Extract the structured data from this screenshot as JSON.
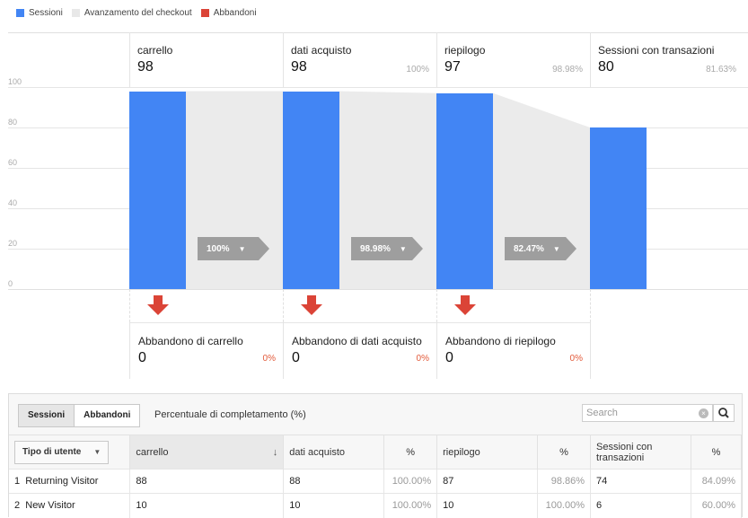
{
  "legend": [
    {
      "label": "Sessioni",
      "color": "#4285f4"
    },
    {
      "label": "Avanzamento del checkout",
      "color": "#e8e8e8"
    },
    {
      "label": "Abbandoni",
      "color": "#db4437"
    }
  ],
  "chart_data": {
    "type": "bar",
    "categories": [
      "carrello",
      "dati acquisto",
      "riepilogo",
      "Sessioni con transazioni"
    ],
    "series": [
      {
        "name": "Sessioni",
        "values": [
          98,
          98,
          97,
          80
        ]
      }
    ],
    "ylim": [
      0,
      100
    ],
    "yticks": [
      "100",
      "80",
      "60",
      "40",
      "20",
      "0"
    ],
    "stage_percentages": [
      "",
      "100%",
      "98.98%",
      "81.63%"
    ],
    "flow_labels": [
      "100%",
      "98.98%",
      "82.47%"
    ],
    "grid": true
  },
  "stages": [
    {
      "name": "carrello",
      "value": "98",
      "pct": ""
    },
    {
      "name": "dati acquisto",
      "value": "98",
      "pct": "100%"
    },
    {
      "name": "riepilogo",
      "value": "97",
      "pct": "98.98%"
    },
    {
      "name": "Sessioni con transazioni",
      "value": "80",
      "pct": "81.63%"
    }
  ],
  "abandonment": [
    {
      "title": "Abbandono di carrello",
      "value": "0",
      "pct": "0%"
    },
    {
      "title": "Abbandono di dati acquisto",
      "value": "0",
      "pct": "0%"
    },
    {
      "title": "Abbandono di riepilogo",
      "value": "0",
      "pct": "0%"
    }
  ],
  "table_controls": {
    "seg_sessions": "Sessioni",
    "seg_abandon": "Abbandoni",
    "pct_label": "Percentuale di completamento (%)",
    "search_placeholder": "Search"
  },
  "table": {
    "dimension": "Tipo di utente",
    "headers": [
      "carrello",
      "dati acquisto",
      "%",
      "riepilogo",
      "%",
      "Sessioni con transazioni",
      "%"
    ],
    "rows": [
      {
        "idx": "1",
        "name": "Returning Visitor",
        "c1": "88",
        "c2": "88",
        "p2": "100.00%",
        "c3": "87",
        "p3": "98.86%",
        "c4": "74",
        "p4": "84.09%"
      },
      {
        "idx": "2",
        "name": "New Visitor",
        "c1": "10",
        "c2": "10",
        "p2": "100.00%",
        "c3": "10",
        "p3": "100.00%",
        "c4": "6",
        "p4": "60.00%"
      }
    ]
  }
}
